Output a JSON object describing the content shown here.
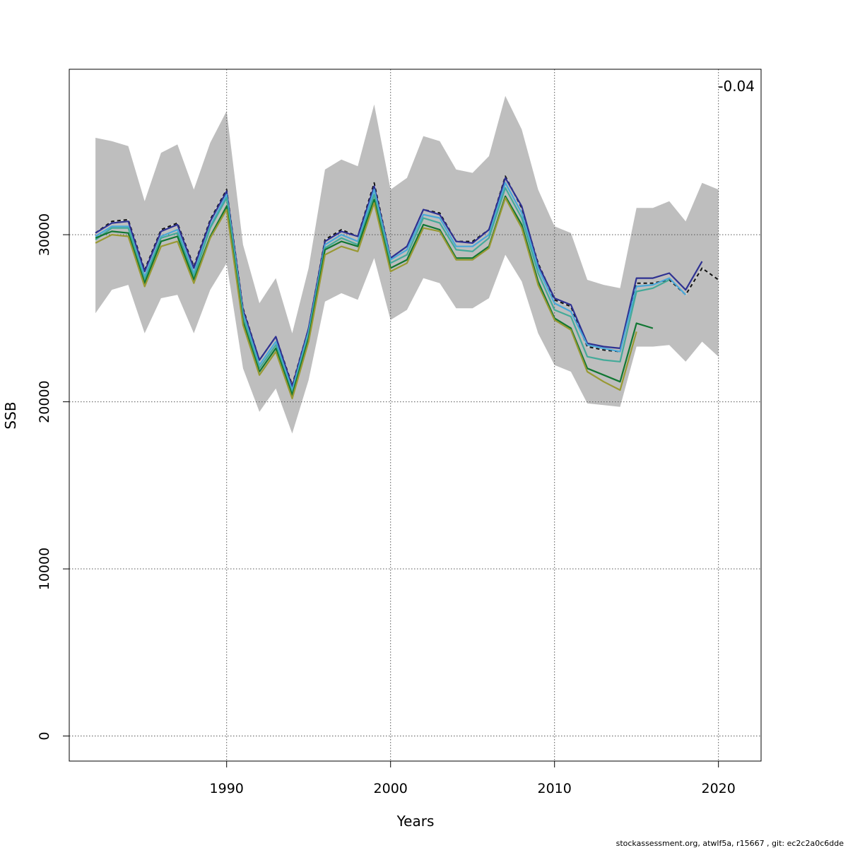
{
  "chart_data": {
    "type": "line",
    "xlabel": "Years",
    "ylabel": "SSB",
    "xlim": [
      1980.4,
      2022.6
    ],
    "ylim": [
      -1500,
      39900
    ],
    "x_ticks": [
      1990,
      2000,
      2010,
      2020
    ],
    "y_ticks": [
      0,
      10000,
      20000,
      30000
    ],
    "x_tick_labels": [
      "1990",
      "2000",
      "2010",
      "2020"
    ],
    "y_tick_labels": [
      "0",
      "10000",
      "20000",
      "30000"
    ],
    "grid": true,
    "annotation": "-0.04",
    "footer": "stockassessment.org, atwlf5a, r15667 , git: ec2c2a0c6dde",
    "band": {
      "color": "#bebebe",
      "x": [
        1982,
        1983,
        1984,
        1985,
        1986,
        1987,
        1988,
        1989,
        1990,
        1991,
        1992,
        1993,
        1994,
        1995,
        1996,
        1997,
        1998,
        1999,
        2000,
        2001,
        2002,
        2003,
        2004,
        2005,
        2006,
        2007,
        2008,
        2009,
        2010,
        2011,
        2012,
        2013,
        2014,
        2015,
        2016,
        2017,
        2018,
        2019,
        2020
      ],
      "upper": [
        35800,
        35600,
        35300,
        32000,
        34900,
        35400,
        32700,
        35500,
        37400,
        29400,
        25900,
        27400,
        24100,
        28000,
        33900,
        34500,
        34100,
        37800,
        32700,
        33400,
        35900,
        35600,
        33900,
        33700,
        34700,
        38300,
        36300,
        32700,
        30500,
        30100,
        27300,
        27000,
        26800,
        31600,
        31600,
        32000,
        30800,
        33100,
        32700
      ],
      "lower": [
        25300,
        26700,
        27000,
        24100,
        26200,
        26400,
        24100,
        26700,
        28300,
        22000,
        19400,
        20800,
        18100,
        21300,
        26000,
        26500,
        26100,
        28600,
        24900,
        25500,
        27400,
        27100,
        25600,
        25600,
        26200,
        28800,
        27200,
        24100,
        22200,
        21800,
        19900,
        19800,
        19700,
        23300,
        23300,
        23400,
        22400,
        23600,
        22700
      ]
    },
    "series": [
      {
        "color": "#d0d0d0",
        "dashed": false,
        "x": [
          1982,
          1983,
          1984,
          1985,
          1986,
          1987,
          1988,
          1989,
          1990,
          1991,
          1992,
          1993,
          1994,
          1995,
          1996,
          1997,
          1998,
          1999,
          2000,
          2001,
          2002,
          2003,
          2004,
          2005,
          2006,
          2007,
          2008,
          2009,
          2010,
          2011,
          2012,
          2013,
          2014,
          2015,
          2016,
          2017,
          2018,
          2019,
          2020
        ],
        "values": [
          30100,
          30800,
          30900,
          27900,
          30300,
          30700,
          28100,
          30900,
          32700,
          25600,
          22500,
          23900,
          21000,
          24400,
          29700,
          30300,
          29900,
          33100,
          28600,
          29300,
          31500,
          31300,
          29600,
          29600,
          30300,
          33500,
          31600,
          28300,
          26100,
          25700,
          23300,
          23100,
          23000,
          27100,
          27100,
          27300,
          26400,
          28000,
          27300
        ]
      },
      {
        "color": "#111111",
        "dashed": true,
        "x": [
          1982,
          1983,
          1984,
          1985,
          1986,
          1987,
          1988,
          1989,
          1990,
          1991,
          1992,
          1993,
          1994,
          1995,
          1996,
          1997,
          1998,
          1999,
          2000,
          2001,
          2002,
          2003,
          2004,
          2005,
          2006,
          2007,
          2008,
          2009,
          2010,
          2011,
          2012,
          2013,
          2014,
          2015,
          2016,
          2017,
          2018,
          2019,
          2020
        ],
        "values": [
          30100,
          30800,
          30900,
          27900,
          30300,
          30700,
          28100,
          30900,
          32700,
          25600,
          22500,
          23900,
          21000,
          24400,
          29700,
          30300,
          29900,
          33100,
          28600,
          29300,
          31500,
          31300,
          29600,
          29600,
          30300,
          33500,
          31600,
          28300,
          26100,
          25700,
          23300,
          23100,
          23000,
          27100,
          27100,
          27300,
          26400,
          28000,
          27300
        ]
      },
      {
        "color": "#2e3192",
        "dashed": false,
        "x": [
          1982,
          1983,
          1984,
          1985,
          1986,
          1987,
          1988,
          1989,
          1990,
          1991,
          1992,
          1993,
          1994,
          1995,
          1996,
          1997,
          1998,
          1999,
          2000,
          2001,
          2002,
          2003,
          2004,
          2005,
          2006,
          2007,
          2008,
          2009,
          2010,
          2011,
          2012,
          2013,
          2014,
          2015,
          2016,
          2017,
          2018,
          2019
        ],
        "values": [
          30100,
          30700,
          30800,
          27800,
          30200,
          30600,
          28000,
          30800,
          32600,
          25500,
          22500,
          23900,
          20900,
          24400,
          29600,
          30200,
          29900,
          32900,
          28600,
          29300,
          31500,
          31200,
          29600,
          29500,
          30300,
          33400,
          31700,
          28200,
          26200,
          25800,
          23500,
          23300,
          23200,
          27400,
          27400,
          27700,
          26700,
          28400
        ]
      },
      {
        "color": "#4aa8d8",
        "dashed": false,
        "x": [
          1982,
          1983,
          1984,
          1985,
          1986,
          1987,
          1988,
          1989,
          1990,
          1991,
          1992,
          1993,
          1994,
          1995,
          1996,
          1997,
          1998,
          1999,
          2000,
          2001,
          2002,
          2003,
          2004,
          2005,
          2006,
          2007,
          2008,
          2009,
          2010,
          2011,
          2012,
          2013,
          2014,
          2015,
          2016,
          2017,
          2018
        ],
        "values": [
          29900,
          30500,
          30500,
          27500,
          29900,
          30300,
          27700,
          30500,
          32400,
          25300,
          22200,
          23600,
          20700,
          24200,
          29400,
          30000,
          29600,
          32700,
          28500,
          29100,
          31200,
          31000,
          29300,
          29300,
          30000,
          33100,
          31300,
          28000,
          25900,
          25400,
          23400,
          23200,
          23000,
          26900,
          27000,
          27400,
          26400
        ]
      },
      {
        "color": "#44aa99",
        "dashed": false,
        "x": [
          1982,
          1983,
          1984,
          1985,
          1986,
          1987,
          1988,
          1989,
          1990,
          1991,
          1992,
          1993,
          1994,
          1995,
          1996,
          1997,
          1998,
          1999,
          2000,
          2001,
          2002,
          2003,
          2004,
          2005,
          2006,
          2007,
          2008,
          2009,
          2010,
          2011,
          2012,
          2013,
          2014,
          2015,
          2016,
          2017
        ],
        "values": [
          29700,
          30400,
          30400,
          27300,
          29800,
          30100,
          27500,
          30400,
          32200,
          25100,
          22000,
          23400,
          20500,
          24000,
          29200,
          29800,
          29400,
          32400,
          28300,
          28800,
          31000,
          30700,
          29100,
          29000,
          29800,
          32800,
          31000,
          27700,
          25500,
          25100,
          22700,
          22500,
          22400,
          26600,
          26800,
          27300
        ]
      },
      {
        "color": "#117733",
        "dashed": false,
        "x": [
          1982,
          1983,
          1984,
          1985,
          1986,
          1987,
          1988,
          1989,
          1990,
          1991,
          1992,
          1993,
          1994,
          1995,
          1996,
          1997,
          1998,
          1999,
          2000,
          2001,
          2002,
          2003,
          2004,
          2005,
          2006,
          2007,
          2008,
          2009,
          2010,
          2011,
          2012,
          2013,
          2014,
          2015,
          2016
        ],
        "values": [
          29800,
          30200,
          30100,
          27100,
          29600,
          29900,
          27300,
          29900,
          31700,
          24800,
          21800,
          23200,
          20400,
          23800,
          29100,
          29600,
          29300,
          32100,
          28000,
          28500,
          30600,
          30300,
          28600,
          28600,
          29300,
          32300,
          30600,
          27200,
          25000,
          24400,
          22000,
          21600,
          21200,
          24700,
          24400
        ]
      },
      {
        "color": "#999933",
        "dashed": false,
        "x": [
          1982,
          1983,
          1984,
          1985,
          1986,
          1987,
          1988,
          1989,
          1990,
          1991,
          1992,
          1993,
          1994,
          1995,
          1996,
          1997,
          1998,
          1999,
          2000,
          2001,
          2002,
          2003,
          2004,
          2005,
          2006,
          2007,
          2008,
          2009,
          2010,
          2011,
          2012,
          2013,
          2014,
          2015
        ],
        "values": [
          29500,
          30000,
          29900,
          26900,
          29300,
          29600,
          27100,
          29800,
          31500,
          24600,
          21600,
          23000,
          20200,
          23600,
          28800,
          29300,
          29000,
          31900,
          27800,
          28300,
          30400,
          30200,
          28500,
          28500,
          29200,
          32200,
          30400,
          27000,
          24900,
          24300,
          21800,
          21200,
          20700,
          24200
        ]
      }
    ]
  }
}
